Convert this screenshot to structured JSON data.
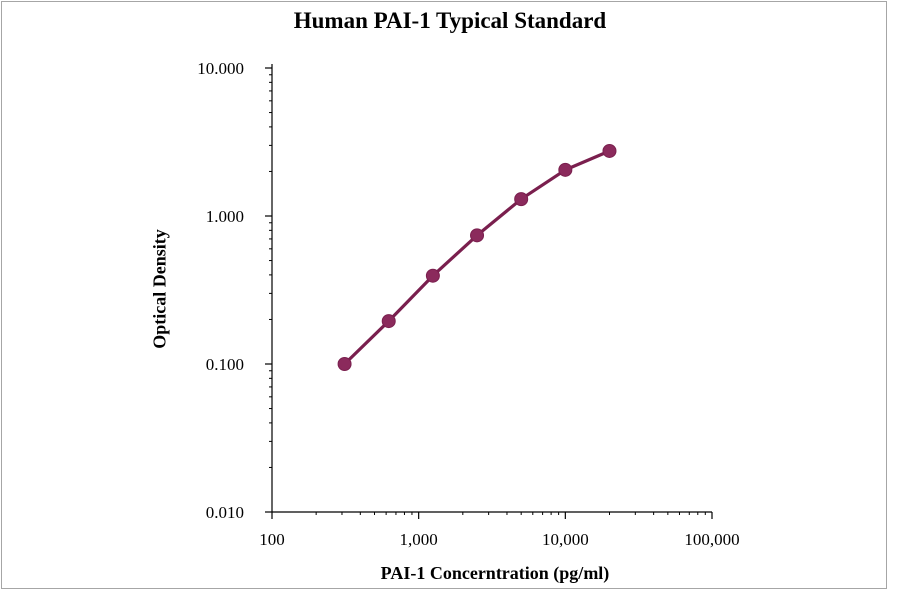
{
  "chart_data": {
    "type": "line",
    "title": "Human PAI-1 Typical Standard",
    "xlabel": "PAI-1 Concerntration (pg/ml)",
    "ylabel": "Optical Density",
    "x_scale": "log",
    "y_scale": "log",
    "xlim": [
      100,
      100000
    ],
    "ylim": [
      0.01,
      10
    ],
    "x_ticks": [
      {
        "value": 100,
        "label": "100"
      },
      {
        "value": 1000,
        "label": "1,000"
      },
      {
        "value": 10000,
        "label": "10,000"
      },
      {
        "value": 100000,
        "label": "100,000"
      }
    ],
    "y_ticks": [
      {
        "value": 0.01,
        "label": "0.010"
      },
      {
        "value": 0.1,
        "label": "0.100"
      },
      {
        "value": 1,
        "label": "1.000"
      },
      {
        "value": 10,
        "label": "10.000"
      }
    ],
    "grid": false,
    "series": [
      {
        "color": "#7a1f4e",
        "marker_color": "#8b2a5c",
        "x": [
          312.5,
          625,
          1250,
          2500,
          5000,
          10000,
          20000
        ],
        "y": [
          0.1,
          0.195,
          0.395,
          0.74,
          1.3,
          2.05,
          2.75
        ]
      }
    ]
  }
}
